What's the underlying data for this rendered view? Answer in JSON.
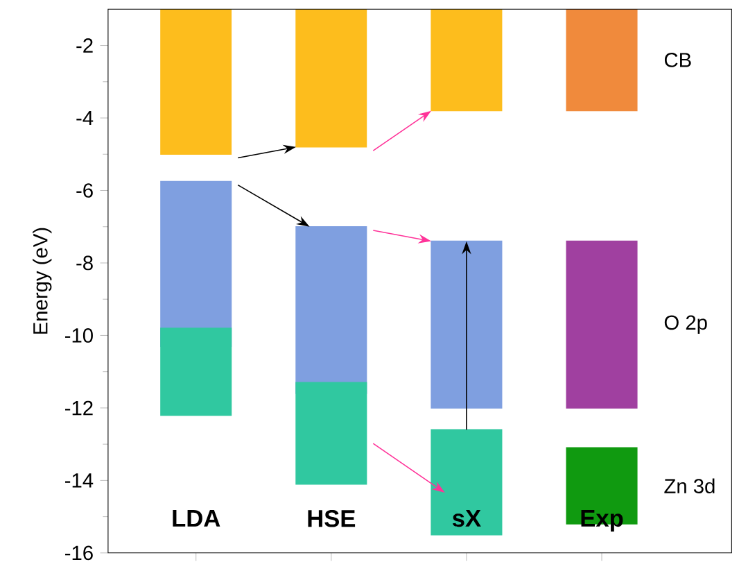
{
  "chart_data": {
    "type": "bar",
    "ylabel": "Energy (eV)",
    "categories": [
      "LDA",
      "HSE",
      "sX",
      "Exp"
    ],
    "ylim": [
      -16,
      -1
    ],
    "yticks": [
      -16,
      -14,
      -12,
      -10,
      -8,
      -6,
      -4,
      -2
    ],
    "series": [
      {
        "name": "CB",
        "colors": [
          "#fdbd1d",
          "#fdbd1d",
          "#fdbd1d",
          "#f08a3c"
        ],
        "base": [
          -5.0,
          -4.8,
          -3.8,
          -3.8
        ],
        "values": [
          4.0,
          3.8,
          2.8,
          2.8
        ]
      },
      {
        "name": "O 2p",
        "colors": [
          "#7f9fe0",
          "#7f9fe0",
          "#7f9fe0",
          "#a040a0"
        ],
        "base": [
          -10.3,
          -11.6,
          -12.0,
          -12.0
        ],
        "values": [
          4.55,
          4.6,
          4.6,
          4.6
        ]
      },
      {
        "name": "Zn 3d",
        "colors": [
          "#30c8a0",
          "#30c8a0",
          "#30c8a0",
          "#109a10"
        ],
        "base": [
          -12.2,
          -14.1,
          -15.5,
          -15.2
        ],
        "values": [
          2.4,
          2.8,
          2.9,
          2.1
        ]
      }
    ]
  }
}
